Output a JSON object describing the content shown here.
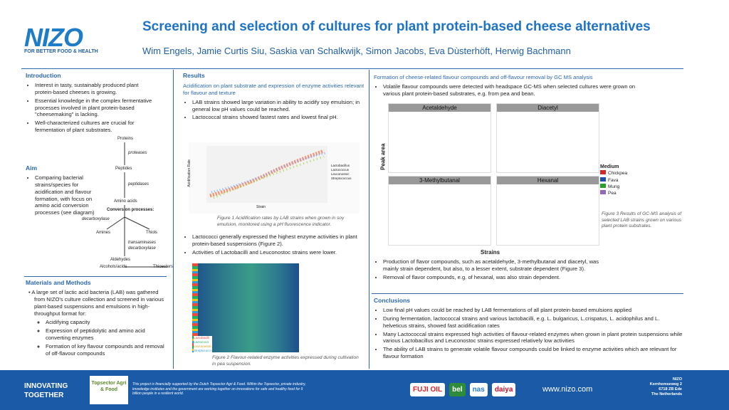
{
  "header": {
    "logo": "NIZO",
    "tagline": "FOR BETTER FOOD & HEALTH",
    "title": "Screening and selection of cultures for plant protein-based cheese alternatives",
    "authors": "Wim Engels, Jamie Curtis Siu, Saskia van Schalkwijk, Simon Jacobs, Eva Dùsterhöft, Herwig Bachmann"
  },
  "introduction": {
    "heading": "Introduction",
    "bullets": [
      "Interest in tasty, sustainably produced plant protein-based cheeses is growing.",
      "Essential knowledge in the complex fermentative processes involved in plant protein-based \"cheesemaking\" is lacking.",
      "Well-characterized cultures are crucial for fermentation of plant substrates."
    ]
  },
  "aim": {
    "heading": "Aim",
    "bullets": [
      "Comparing bacterial strains/species for acidification and flavour formation, with focus on amino acid conversion processes (see diagram)"
    ]
  },
  "diagram": {
    "proteins": "Proteins",
    "proteases": "proteases",
    "peptides": "Peptides",
    "peptidases": "peptidases",
    "amino_acids": "Amino acids",
    "conversion": "Conversion processes:",
    "decarboxylase": "decarboxylase",
    "amines": "Amines",
    "thiols": "Thiols",
    "transaminases": "transaminases",
    "decarboxylase2": "decarboxylase",
    "aldehydes": "Aldehydes",
    "alcohols": "Alcohols/acids",
    "thioesters": "Thioesters"
  },
  "materials": {
    "heading": "Materials and Methods",
    "text": "A large set of lactic acid bacteria (LAB) was gathered from NIZO's culture collection and screened in various plant-based suspensions and emulsions in high-throughput format for:",
    "items": [
      "Acidifying capacity",
      "Expression of peptidolytic and amino acid converting enzymes",
      "Formation of key flavour compounds and removal of off-flavour compounds"
    ]
  },
  "results": {
    "heading": "Results",
    "subheading": "Acidification on plant substrate and expression of enzyme activities relevant for flavour and texture",
    "bullets1": [
      "LAB strains showed large variation in ability to acidify soy emulsion; in general low pH values could be reached.",
      "Lactococcal strains showed fastest rates and lowest final pH."
    ],
    "figure1_xlabel": "Strain",
    "figure1_ylabel": "Acidification Rate",
    "figure1_legend": [
      "Lactobacillus",
      "Lactococcus",
      "Leuconostoc",
      "Streptococcus"
    ],
    "figure1_caption": "Figure 1  Acidification rates by LAB strains when grown in soy emulsion, monitored using a pH fluorescence indicator.",
    "bullets2": [
      "Lactococci generally expressed the highest enzyme activities in plant protein-based suspensions (Figure 2).",
      "Activities of Lactobacilli and Leuconostoc strains were lower."
    ],
    "figure2_legend": [
      "Lactobacilli",
      "Lactococci",
      "Leuconostoc",
      "Streptococci"
    ],
    "figure2_caption": "Figure 2  Flavour-related enzyme activities expressed during cultivation in pea suspension."
  },
  "gcms": {
    "heading": "Formation of cheese-related flavour compounds and off-flavour removal by GC MS analysis",
    "bullets1": [
      "Volatile flavour compounds were detected with headspace GC-MS when selected cultures were grown on various plant protein-based substrates, e.g. from pea and bean."
    ],
    "panels": [
      "Acetaldehyde",
      "Diacetyl",
      "3-Methylbutanal",
      "Hexanal"
    ],
    "ylabel": "Peak area",
    "xlabel": "Strains",
    "legend_title": "Medium",
    "legend": [
      {
        "name": "Chickpea",
        "color": "#d62728"
      },
      {
        "name": "Fava",
        "color": "#1f4fb4"
      },
      {
        "name": "Mung",
        "color": "#2ca02c"
      },
      {
        "name": "Pea",
        "color": "#9467bd"
      }
    ],
    "figure3_caption": "Figure 3  Results of GC-MS analysis of selected LAB strains grown on various plant protein substrates.",
    "bullets2": [
      "Production of flavor compounds, such as acetaldehyde, 3-methylbutanal and diacetyl, was mainly strain dependent, but also, to a lesser extent, substrate dependent (Figure 3).",
      "Removal of flavor compounds, e.g. of hexanal, was also strain dependent."
    ]
  },
  "conclusions": {
    "heading": "Conclusions",
    "bullets": [
      "Low final pH values could be reached by LAB fermentations of all plant protein-based emulsions applied",
      "During fermentation, lactococcal strains and various lactobacilli, e.g. L. bulgaricus, L.crispatus, L. acidophilus and L. helveticus strains, showed fast acidification rates",
      "Many Lactococcal strains expressed high activities of flavour-related enzymes when grown in plant protein suspensions while various Lactobacillus and Leuconostoc strains expressed relatively low activities",
      "The ability of LAB strains to generate volatile flavour compounds could be linked to enzyme activities which are relevant for flavour formation"
    ]
  },
  "footer": {
    "slogan": "INNOVATING TOGETHER",
    "topsector": "Topsector Agri & Food",
    "funding": "This project is financially supported by the Dutch Topsector Agri & Food. Within the Topsector, private industry, knowledge institutes and the government are working together on innovations for safe and healthy food for 9 billion people in a resilient world.",
    "partners": [
      "FUJI OIL",
      "bel",
      "nas",
      "daiya"
    ],
    "url": "www.nizo.com",
    "address": [
      "NIZO",
      "Kernhemseweg 2",
      "6718 ZB Ede",
      "The Netherlands"
    ]
  }
}
